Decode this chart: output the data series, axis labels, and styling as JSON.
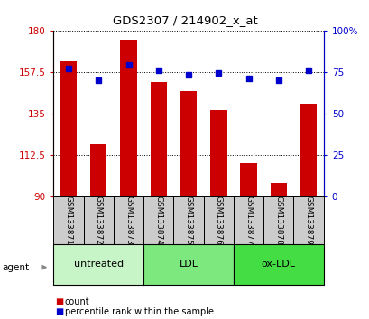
{
  "title": "GDS2307 / 214902_x_at",
  "samples": [
    "GSM133871",
    "GSM133872",
    "GSM133873",
    "GSM133874",
    "GSM133875",
    "GSM133876",
    "GSM133877",
    "GSM133878",
    "GSM133879"
  ],
  "counts": [
    163,
    118,
    175,
    152,
    147,
    137,
    108,
    97,
    140
  ],
  "percentiles": [
    77,
    70,
    79,
    76,
    73,
    74,
    71,
    70,
    76
  ],
  "groups": [
    {
      "label": "untreated",
      "start": 0,
      "end": 3,
      "color": "#c8f5c8"
    },
    {
      "label": "LDL",
      "start": 3,
      "end": 6,
      "color": "#7de87d"
    },
    {
      "label": "ox-LDL",
      "start": 6,
      "end": 9,
      "color": "#44dd44"
    }
  ],
  "ylim_left": [
    90,
    180
  ],
  "ylim_right": [
    0,
    100
  ],
  "yticks_left": [
    90,
    112.5,
    135,
    157.5,
    180
  ],
  "yticks_right": [
    0,
    25,
    50,
    75,
    100
  ],
  "bar_color": "#cc0000",
  "dot_color": "#0000cc",
  "bar_width": 0.55,
  "left_label_color": "#cc0000",
  "right_label_color": "#0000cc",
  "sample_box_color": "#cccccc",
  "fig_width": 4.1,
  "fig_height": 3.54
}
